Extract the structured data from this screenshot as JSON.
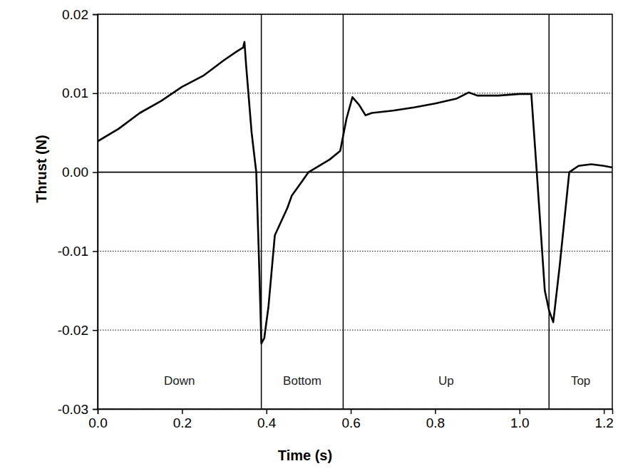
{
  "chart_data": {
    "type": "line",
    "x_label": "Time (s)",
    "y_label": "Thrust (N)",
    "color": "#000000",
    "grid": true,
    "xlim": [
      0,
      1.22
    ],
    "xticks": [
      {
        "value": 0,
        "label": "0.0"
      },
      {
        "value": 0.2,
        "label": "0.2"
      },
      {
        "value": 0.4,
        "label": "0.4"
      },
      {
        "value": 0.6,
        "label": "0.6"
      },
      {
        "value": 0.8,
        "label": "0.8"
      },
      {
        "value": 1.0,
        "label": "1.0"
      },
      {
        "value": 1.2,
        "label": "1.2"
      }
    ],
    "ylim": [
      -0.03,
      0.02
    ],
    "yticks": [
      -0.03,
      -0.02,
      -0.01,
      {
        "value": 0,
        "label": "0.00"
      },
      0.01,
      0.02
    ],
    "phases": [
      {
        "label": "Down",
        "start": 0,
        "end": 0.388
      },
      {
        "label": "Bottom",
        "start": 0.388,
        "end": 0.582
      },
      {
        "label": "Up",
        "start": 0.582,
        "end": 1.07
      },
      {
        "label": "Top",
        "start": 1.07,
        "end": 1.22
      }
    ],
    "x": [
      0,
      0.05,
      0.1,
      0.15,
      0.2,
      0.25,
      0.3,
      0.33,
      0.345,
      0.348,
      0.352,
      0.365,
      0.376,
      0.383,
      0.388,
      0.395,
      0.405,
      0.42,
      0.45,
      0.46,
      0.5,
      0.55,
      0.575,
      0.59,
      0.604,
      0.62,
      0.635,
      0.65,
      0.7,
      0.75,
      0.8,
      0.85,
      0.88,
      0.9,
      0.95,
      1.0,
      1.028,
      1.041,
      1.06,
      1.07,
      1.08,
      1.095,
      1.118,
      1.14,
      1.17,
      1.2,
      1.22
    ],
    "values": [
      0.0039,
      0.0055,
      0.0075,
      0.009,
      0.0108,
      0.0122,
      0.0142,
      0.0153,
      0.0158,
      0.0165,
      0.0135,
      0.005,
      0.0,
      -0.012,
      -0.0217,
      -0.021,
      -0.017,
      -0.008,
      -0.0045,
      -0.003,
      0.0,
      0.0016,
      0.0027,
      0.0068,
      0.0095,
      0.0085,
      0.0072,
      0.0075,
      0.0078,
      0.0082,
      0.0087,
      0.0093,
      0.0101,
      0.0097,
      0.0097,
      0.0099,
      0.0099,
      0.0,
      -0.015,
      -0.0175,
      -0.019,
      -0.012,
      0.0,
      0.0008,
      0.001,
      0.0008,
      0.0006
    ]
  }
}
